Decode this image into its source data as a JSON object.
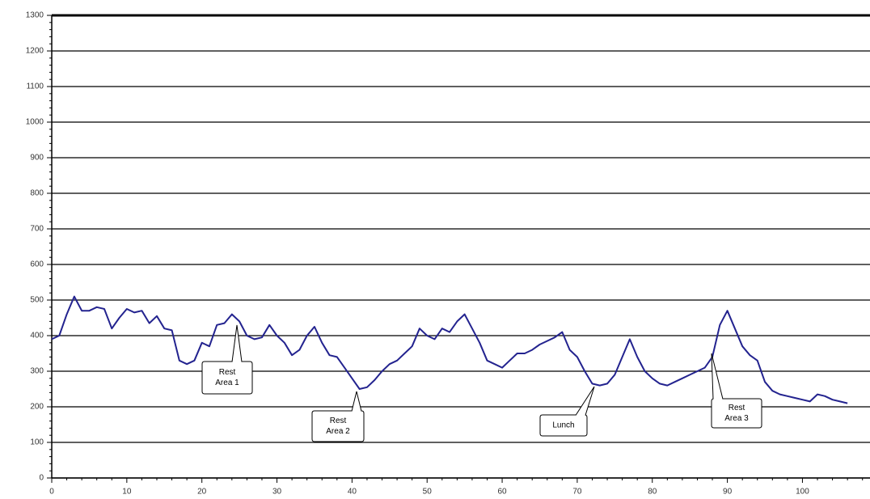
{
  "chart_data": {
    "type": "line",
    "x": [
      0,
      1,
      2,
      3,
      4,
      5,
      6,
      7,
      8,
      9,
      10,
      11,
      12,
      13,
      14,
      15,
      16,
      17,
      18,
      19,
      20,
      21,
      22,
      23,
      24,
      25,
      26,
      27,
      28,
      29,
      30,
      31,
      32,
      33,
      34,
      35,
      36,
      37,
      38,
      39,
      40,
      41,
      42,
      43,
      44,
      45,
      46,
      47,
      48,
      49,
      50,
      51,
      52,
      53,
      54,
      55,
      56,
      57,
      58,
      59,
      60,
      61,
      62,
      63,
      64,
      65,
      66,
      67,
      68,
      69,
      70,
      71,
      72,
      73,
      74,
      75,
      76,
      77,
      78,
      79,
      80,
      81,
      82,
      83,
      84,
      85,
      86,
      87,
      88,
      89,
      90,
      91,
      92,
      93,
      94,
      95,
      96,
      97,
      98,
      99,
      100,
      101,
      102,
      103,
      104,
      105,
      106
    ],
    "series": [
      {
        "color": "#23238f",
        "values": [
          390,
          400,
          460,
          510,
          470,
          470,
          480,
          475,
          420,
          450,
          475,
          465,
          470,
          435,
          455,
          420,
          415,
          330,
          320,
          330,
          380,
          370,
          430,
          435,
          460,
          440,
          400,
          390,
          395,
          430,
          400,
          380,
          345,
          360,
          400,
          425,
          380,
          345,
          340,
          310,
          280,
          250,
          255,
          275,
          300,
          320,
          330,
          350,
          370,
          420,
          400,
          390,
          420,
          410,
          440,
          460,
          420,
          380,
          330,
          320,
          310,
          330,
          350,
          350,
          360,
          375,
          385,
          395,
          410,
          360,
          340,
          300,
          265,
          260,
          265,
          290,
          340,
          390,
          340,
          300,
          280,
          265,
          260,
          270,
          280,
          290,
          300,
          310,
          340,
          430,
          470,
          420,
          370,
          345,
          330,
          270,
          245,
          235,
          230,
          225,
          220,
          215,
          235,
          230,
          220,
          215,
          210
        ]
      }
    ],
    "xlim": [
      0,
      109
    ],
    "ylim": [
      0,
      1300
    ],
    "xticks": [
      0,
      10,
      20,
      30,
      40,
      50,
      60,
      70,
      80,
      90,
      100
    ],
    "yticks": [
      0,
      100,
      200,
      300,
      400,
      500,
      600,
      700,
      800,
      900,
      1000,
      1100,
      1200,
      1300
    ],
    "grid": true,
    "annotations": [
      {
        "lines": [
          "Rest",
          "Area 1"
        ]
      },
      {
        "lines": [
          "Rest",
          "Area 2"
        ]
      },
      {
        "lines": [
          "Lunch"
        ]
      },
      {
        "lines": [
          "Rest",
          "Area 3"
        ]
      }
    ]
  }
}
